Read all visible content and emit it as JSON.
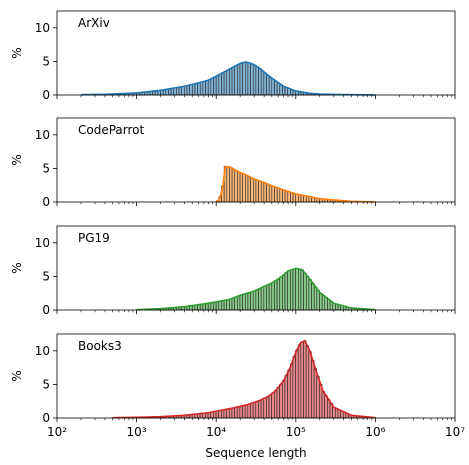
{
  "figure": {
    "xlabel": "Sequence length",
    "ylabel": "%"
  },
  "chart_data": [
    {
      "type": "bar",
      "title": "ArXiv",
      "color": "#1f77b4",
      "xscale": "log",
      "xlim": [
        100,
        10000000
      ],
      "ylim": [
        0,
        12.5
      ],
      "yticks": [
        0,
        5,
        10
      ],
      "xlabel": "",
      "ylabel": "%",
      "x": [
        200,
        400,
        1000,
        2000,
        4000,
        6000,
        8000,
        10000,
        13000,
        16000,
        20000,
        23000,
        26000,
        30000,
        35000,
        40000,
        50000,
        70000,
        100000,
        150000,
        200000,
        300000,
        500000,
        1000000
      ],
      "values": [
        0.05,
        0.1,
        0.3,
        0.7,
        1.3,
        1.8,
        2.2,
        2.8,
        3.5,
        4.1,
        4.7,
        4.9,
        4.8,
        4.5,
        4.0,
        3.4,
        2.5,
        1.3,
        0.6,
        0.25,
        0.15,
        0.08,
        0.04,
        0.01
      ]
    },
    {
      "type": "bar",
      "title": "CodeParrot",
      "color": "#ff7f0e",
      "xscale": "log",
      "xlim": [
        100,
        10000000
      ],
      "ylim": [
        0,
        12.5
      ],
      "yticks": [
        0,
        5,
        10
      ],
      "xlabel": "",
      "ylabel": "%",
      "x": [
        10000,
        11000,
        12000,
        13000,
        15000,
        17000,
        20000,
        25000,
        30000,
        40000,
        50000,
        70000,
        100000,
        150000,
        200000,
        300000,
        500000,
        700000,
        1000000
      ],
      "values": [
        0.0,
        0.4,
        2.0,
        5.3,
        5.2,
        4.8,
        4.4,
        3.9,
        3.4,
        2.9,
        2.4,
        1.8,
        1.2,
        0.8,
        0.5,
        0.3,
        0.1,
        0.05,
        0.02
      ]
    },
    {
      "type": "bar",
      "title": "PG19",
      "color": "#2ca02c",
      "xscale": "log",
      "xlim": [
        100,
        10000000
      ],
      "ylim": [
        0,
        12.5
      ],
      "yticks": [
        0,
        5,
        10
      ],
      "xlabel": "",
      "ylabel": "%",
      "x": [
        1000,
        2000,
        4000,
        7000,
        10000,
        15000,
        20000,
        30000,
        40000,
        50000,
        60000,
        70000,
        80000,
        100000,
        120000,
        150000,
        200000,
        300000,
        500000,
        1000000
      ],
      "values": [
        0.05,
        0.2,
        0.5,
        0.9,
        1.2,
        1.6,
        2.2,
        2.8,
        3.5,
        4.0,
        4.6,
        5.2,
        5.8,
        6.2,
        6.0,
        4.6,
        2.6,
        1.0,
        0.3,
        0.05
      ]
    },
    {
      "type": "bar",
      "title": "Books3",
      "color": "#d62728",
      "xscale": "log",
      "xlim": [
        100,
        10000000
      ],
      "ylim": [
        0,
        12.5
      ],
      "yticks": [
        0,
        5,
        10
      ],
      "xlabel": "Sequence length",
      "ylabel": "%",
      "x": [
        500,
        1000,
        2000,
        4000,
        8000,
        15000,
        25000,
        35000,
        45000,
        55000,
        70000,
        85000,
        100000,
        115000,
        130000,
        150000,
        180000,
        220000,
        300000,
        500000,
        1000000
      ],
      "values": [
        0.05,
        0.1,
        0.2,
        0.4,
        0.8,
        1.4,
        2.0,
        2.6,
        3.2,
        4.0,
        5.5,
        7.5,
        9.8,
        11.2,
        11.5,
        10.0,
        7.0,
        4.0,
        1.6,
        0.4,
        0.05
      ]
    }
  ]
}
